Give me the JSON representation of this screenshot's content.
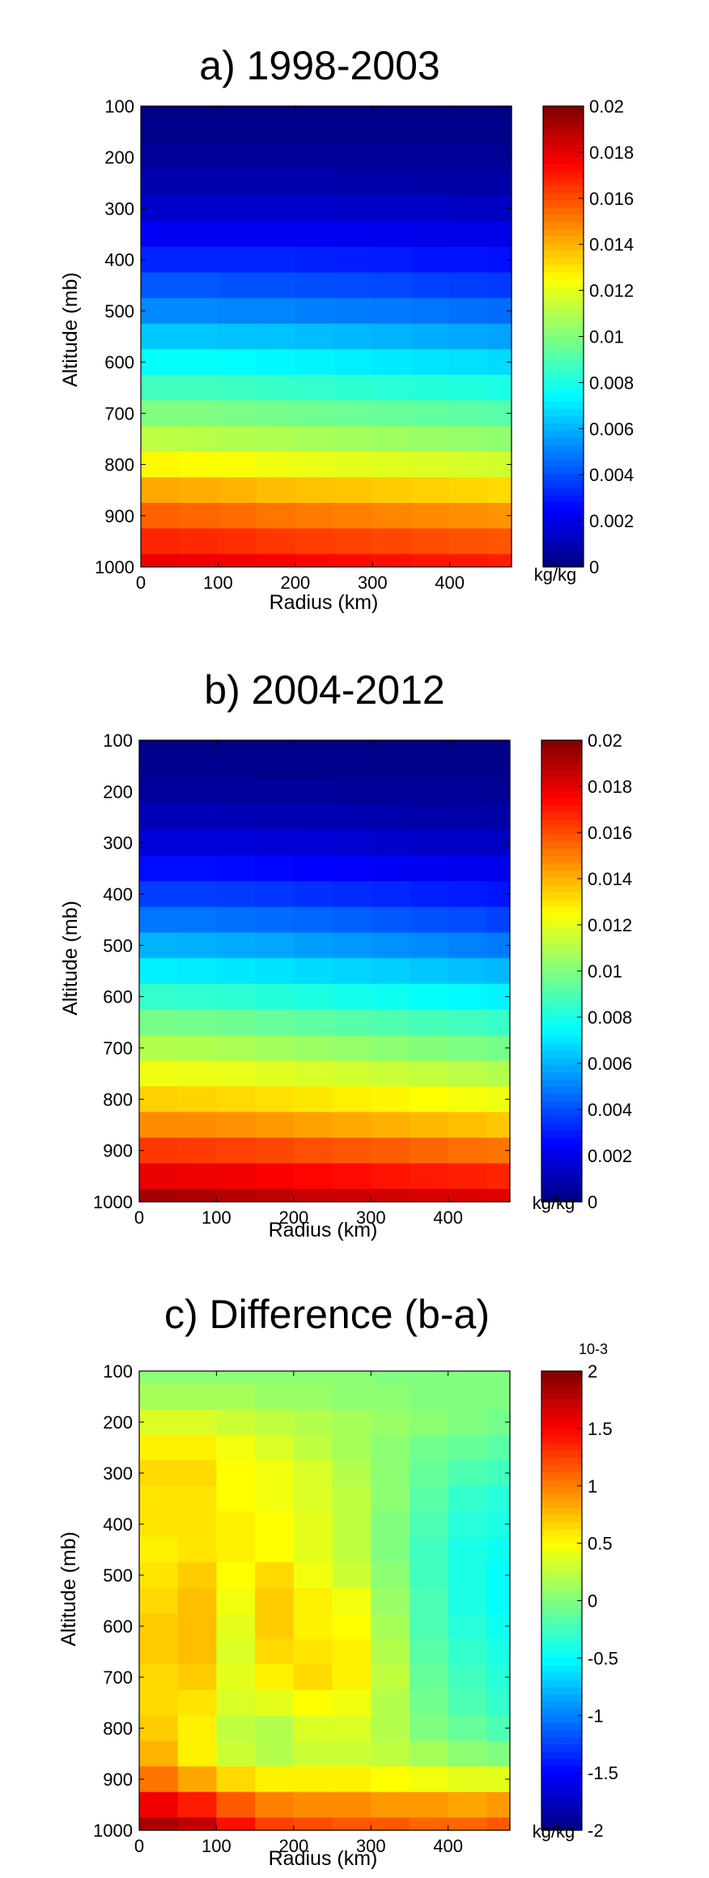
{
  "chart_data": [
    {
      "type": "heatmap",
      "title": "a) 1998-2003",
      "xlabel": "Radius (km)",
      "ylabel": "Altitude (mb)",
      "xlim": [
        0,
        480
      ],
      "ylim": [
        1000,
        100
      ],
      "x_ticks": [
        "0",
        "100",
        "200",
        "300",
        "400"
      ],
      "y_ticks": [
        "100",
        "200",
        "300",
        "400",
        "500",
        "600",
        "700",
        "800",
        "900",
        "1000"
      ],
      "colorbar": {
        "range": [
          0,
          0.02
        ],
        "ticks": [
          "0",
          "0.002",
          "0.004",
          "0.006",
          "0.008",
          "0.01",
          "0.012",
          "0.014",
          "0.016",
          "0.018",
          "0.02"
        ],
        "unit": "kg/kg",
        "exponent": ""
      },
      "colormap": "jet",
      "grid": {
        "altitudes_mb": [
          100,
          150,
          200,
          250,
          300,
          350,
          400,
          450,
          500,
          550,
          600,
          650,
          700,
          750,
          800,
          850,
          900,
          950,
          1000
        ],
        "radius_edges_km": [
          0,
          50,
          100,
          150,
          200,
          250,
          300,
          350,
          400,
          450,
          480
        ],
        "values": [
          [
            0.0001,
            0.0001,
            0.0001,
            0.0001,
            0.0001,
            0.0001,
            0.0001,
            0.0001,
            0.0001,
            0.0001
          ],
          [
            0.0002,
            0.0002,
            0.0002,
            0.0002,
            0.0002,
            0.0002,
            0.0002,
            0.0002,
            0.0002,
            0.0002
          ],
          [
            0.0005,
            0.0005,
            0.0005,
            0.0005,
            0.0005,
            0.0005,
            0.0005,
            0.00045,
            0.00045,
            0.00045
          ],
          [
            0.0009,
            0.0009,
            0.0009,
            0.0009,
            0.0009,
            0.00085,
            0.00085,
            0.0008,
            0.0008,
            0.0008
          ],
          [
            0.0015,
            0.0015,
            0.0015,
            0.0015,
            0.0015,
            0.00145,
            0.0014,
            0.0014,
            0.00135,
            0.0013
          ],
          [
            0.0023,
            0.0023,
            0.0023,
            0.0023,
            0.00225,
            0.0022,
            0.00215,
            0.0021,
            0.00205,
            0.002
          ],
          [
            0.0032,
            0.0032,
            0.0032,
            0.0032,
            0.0031,
            0.00305,
            0.003,
            0.0029,
            0.00285,
            0.0028
          ],
          [
            0.0042,
            0.0042,
            0.0041,
            0.0041,
            0.004,
            0.00395,
            0.0039,
            0.0038,
            0.0037,
            0.0036
          ],
          [
            0.0052,
            0.0052,
            0.0051,
            0.0051,
            0.005,
            0.00495,
            0.0049,
            0.0048,
            0.0047,
            0.0046
          ],
          [
            0.0064,
            0.0064,
            0.0063,
            0.0063,
            0.0062,
            0.0061,
            0.006,
            0.0059,
            0.0058,
            0.0057
          ],
          [
            0.0076,
            0.0076,
            0.0075,
            0.0074,
            0.0073,
            0.0072,
            0.0071,
            0.007,
            0.0069,
            0.0068
          ],
          [
            0.0088,
            0.0088,
            0.0087,
            0.0086,
            0.0085,
            0.0084,
            0.0083,
            0.0082,
            0.0081,
            0.008
          ],
          [
            0.01,
            0.01,
            0.0099,
            0.0098,
            0.0097,
            0.0096,
            0.0095,
            0.0094,
            0.0093,
            0.0092
          ],
          [
            0.0112,
            0.0111,
            0.011,
            0.0109,
            0.0108,
            0.0107,
            0.0106,
            0.0105,
            0.0104,
            0.0103
          ],
          [
            0.0126,
            0.0125,
            0.0124,
            0.0122,
            0.0121,
            0.012,
            0.0119,
            0.0118,
            0.0117,
            0.0116
          ],
          [
            0.0142,
            0.0141,
            0.014,
            0.0138,
            0.0137,
            0.0136,
            0.0135,
            0.0134,
            0.0133,
            0.0132
          ],
          [
            0.0156,
            0.0155,
            0.0154,
            0.0152,
            0.0151,
            0.015,
            0.0149,
            0.0148,
            0.0147,
            0.0146
          ],
          [
            0.0168,
            0.0167,
            0.0166,
            0.0164,
            0.0163,
            0.0162,
            0.0161,
            0.016,
            0.0159,
            0.0158
          ],
          [
            0.0179,
            0.0178,
            0.0177,
            0.0176,
            0.0174,
            0.0173,
            0.0172,
            0.0171,
            0.017,
            0.0169
          ]
        ]
      }
    },
    {
      "type": "heatmap",
      "title": "b) 2004-2012",
      "xlabel": "Radius (km)",
      "ylabel": "Altitude (mb)",
      "xlim": [
        0,
        480
      ],
      "ylim": [
        1000,
        100
      ],
      "x_ticks": [
        "0",
        "100",
        "200",
        "300",
        "400"
      ],
      "y_ticks": [
        "100",
        "200",
        "300",
        "400",
        "500",
        "600",
        "700",
        "800",
        "900",
        "1000"
      ],
      "colorbar": {
        "range": [
          0,
          0.02
        ],
        "ticks": [
          "0",
          "0.002",
          "0.004",
          "0.006",
          "0.008",
          "0.01",
          "0.012",
          "0.014",
          "0.016",
          "0.018",
          "0.02"
        ],
        "unit": "kg/kg",
        "exponent": ""
      },
      "colormap": "jet",
      "grid": {
        "altitudes_mb": [
          100,
          150,
          200,
          250,
          300,
          350,
          400,
          450,
          500,
          550,
          600,
          650,
          700,
          750,
          800,
          850,
          900,
          950,
          1000
        ],
        "radius_edges_km": [
          0,
          50,
          100,
          150,
          200,
          250,
          300,
          350,
          400,
          450,
          480
        ],
        "values": [
          [
            0.0001,
            0.0001,
            0.0001,
            0.0001,
            0.0001,
            0.0001,
            0.0001,
            0.0001,
            0.0001,
            0.0001
          ],
          [
            0.00025,
            0.00025,
            0.00025,
            0.00025,
            0.00025,
            0.00025,
            0.0002,
            0.0002,
            0.0002,
            0.0002
          ],
          [
            0.0006,
            0.0006,
            0.0006,
            0.00055,
            0.00055,
            0.0005,
            0.0005,
            0.00045,
            0.00045,
            0.0004
          ],
          [
            0.0011,
            0.0011,
            0.00105,
            0.001,
            0.001,
            0.00095,
            0.0009,
            0.00085,
            0.0008,
            0.00075
          ],
          [
            0.0018,
            0.0018,
            0.00175,
            0.0017,
            0.00165,
            0.0016,
            0.0015,
            0.00145,
            0.0014,
            0.00135
          ],
          [
            0.0027,
            0.0027,
            0.00265,
            0.0026,
            0.0025,
            0.00245,
            0.00235,
            0.00225,
            0.00215,
            0.0021
          ],
          [
            0.0037,
            0.0037,
            0.00365,
            0.00355,
            0.00345,
            0.00335,
            0.00325,
            0.0031,
            0.003,
            0.0029
          ],
          [
            0.0048,
            0.0048,
            0.0047,
            0.0046,
            0.0045,
            0.0044,
            0.00425,
            0.0041,
            0.00395,
            0.0038
          ],
          [
            0.006,
            0.00595,
            0.00585,
            0.00575,
            0.0056,
            0.0055,
            0.00535,
            0.0052,
            0.00505,
            0.0049
          ],
          [
            0.0072,
            0.00715,
            0.00705,
            0.00695,
            0.0068,
            0.0067,
            0.00655,
            0.0064,
            0.00625,
            0.0061
          ],
          [
            0.0085,
            0.00845,
            0.00835,
            0.0082,
            0.00805,
            0.0079,
            0.00775,
            0.0076,
            0.00745,
            0.0073
          ],
          [
            0.0098,
            0.00975,
            0.00965,
            0.0095,
            0.00935,
            0.0092,
            0.00905,
            0.0089,
            0.00875,
            0.0086
          ],
          [
            0.011,
            0.01095,
            0.01085,
            0.0107,
            0.01055,
            0.0104,
            0.01025,
            0.0101,
            0.00995,
            0.0098
          ],
          [
            0.0122,
            0.01215,
            0.01205,
            0.0119,
            0.01175,
            0.0116,
            0.01145,
            0.0113,
            0.01115,
            0.011
          ],
          [
            0.0134,
            0.01335,
            0.01325,
            0.0131,
            0.01295,
            0.0128,
            0.01265,
            0.0125,
            0.01235,
            0.0122
          ],
          [
            0.0148,
            0.01475,
            0.01465,
            0.0145,
            0.01435,
            0.0142,
            0.01405,
            0.0139,
            0.01375,
            0.0136
          ],
          [
            0.0164,
            0.01635,
            0.01625,
            0.0161,
            0.01595,
            0.0158,
            0.01565,
            0.0155,
            0.01535,
            0.0152
          ],
          [
            0.0179,
            0.01785,
            0.01775,
            0.0176,
            0.01745,
            0.0173,
            0.01715,
            0.017,
            0.0169,
            0.0168
          ],
          [
            0.0193,
            0.0192,
            0.019,
            0.0188,
            0.0186,
            0.0185,
            0.0184,
            0.0183,
            0.0182,
            0.0181
          ]
        ]
      }
    },
    {
      "type": "heatmap",
      "title": "c) Difference (b-a)",
      "xlabel": "Radius (km)",
      "ylabel": "Altitude (mb)",
      "xlim": [
        0,
        480
      ],
      "ylim": [
        1000,
        100
      ],
      "x_ticks": [
        "0",
        "100",
        "200",
        "300",
        "400"
      ],
      "y_ticks": [
        "100",
        "200",
        "300",
        "400",
        "500",
        "600",
        "700",
        "800",
        "900",
        "1000"
      ],
      "colorbar": {
        "range": [
          -2,
          2
        ],
        "ticks": [
          "-2",
          "-1.5",
          "-1",
          "-0.5",
          "0",
          "0.5",
          "1",
          "1.5",
          "2"
        ],
        "unit": "kg/kg",
        "exponent": "10-3"
      },
      "colormap": "jet",
      "grid": {
        "altitudes_mb": [
          100,
          150,
          200,
          250,
          300,
          350,
          400,
          450,
          500,
          550,
          600,
          650,
          700,
          750,
          800,
          850,
          900,
          950,
          1000
        ],
        "radius_edges_km": [
          0,
          50,
          100,
          150,
          200,
          250,
          300,
          350,
          400,
          450,
          480
        ],
        "values": [
          [
            0.05,
            0.05,
            0.05,
            0.05,
            0.05,
            0.05,
            0.0,
            0.0,
            0.0,
            0.0
          ],
          [
            0.15,
            0.15,
            0.15,
            0.1,
            0.1,
            0.05,
            0.05,
            0.0,
            0.0,
            0.0
          ],
          [
            0.35,
            0.35,
            0.3,
            0.25,
            0.2,
            0.15,
            0.1,
            0.05,
            0.0,
            -0.05
          ],
          [
            0.55,
            0.55,
            0.45,
            0.35,
            0.25,
            0.15,
            0.05,
            -0.05,
            -0.1,
            -0.15
          ],
          [
            0.65,
            0.65,
            0.5,
            0.45,
            0.35,
            0.2,
            0.05,
            -0.1,
            -0.2,
            -0.25
          ],
          [
            0.6,
            0.6,
            0.5,
            0.45,
            0.35,
            0.25,
            0.05,
            -0.15,
            -0.3,
            -0.35
          ],
          [
            0.6,
            0.6,
            0.55,
            0.5,
            0.4,
            0.25,
            0.0,
            -0.2,
            -0.35,
            -0.4
          ],
          [
            0.55,
            0.6,
            0.55,
            0.5,
            0.4,
            0.25,
            0.0,
            -0.25,
            -0.4,
            -0.45
          ],
          [
            0.6,
            0.7,
            0.5,
            0.65,
            0.45,
            0.3,
            0.05,
            -0.25,
            -0.4,
            -0.5
          ],
          [
            0.65,
            0.75,
            0.45,
            0.7,
            0.55,
            0.45,
            0.1,
            -0.2,
            -0.4,
            -0.5
          ],
          [
            0.7,
            0.75,
            0.4,
            0.7,
            0.55,
            0.5,
            0.15,
            -0.2,
            -0.35,
            -0.45
          ],
          [
            0.7,
            0.75,
            0.35,
            0.65,
            0.6,
            0.55,
            0.2,
            -0.15,
            -0.3,
            -0.4
          ],
          [
            0.65,
            0.7,
            0.4,
            0.55,
            0.65,
            0.55,
            0.25,
            -0.1,
            -0.25,
            -0.35
          ],
          [
            0.65,
            0.6,
            0.35,
            0.4,
            0.5,
            0.45,
            0.2,
            -0.05,
            -0.2,
            -0.3
          ],
          [
            0.7,
            0.55,
            0.25,
            0.2,
            0.35,
            0.35,
            0.2,
            0.0,
            -0.1,
            -0.2
          ],
          [
            0.8,
            0.55,
            0.3,
            0.2,
            0.3,
            0.3,
            0.25,
            0.15,
            0.05,
            0.0
          ],
          [
            1.05,
            0.85,
            0.65,
            0.55,
            0.55,
            0.55,
            0.5,
            0.45,
            0.4,
            0.4
          ],
          [
            1.55,
            1.4,
            1.15,
            1.0,
            0.95,
            0.95,
            0.9,
            0.9,
            0.85,
            0.9
          ],
          [
            1.85,
            1.75,
            1.45,
            1.25,
            1.2,
            1.15,
            1.15,
            1.1,
            1.1,
            1.15
          ]
        ]
      }
    }
  ]
}
